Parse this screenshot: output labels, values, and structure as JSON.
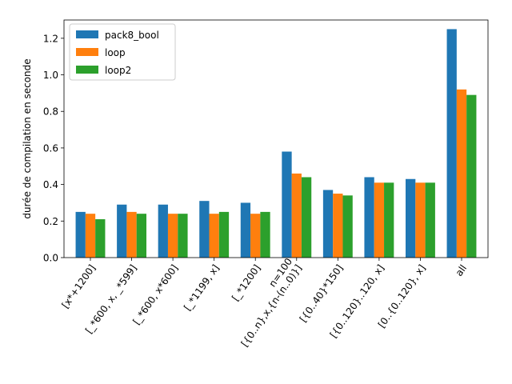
{
  "chart_data": {
    "type": "bar",
    "title": "",
    "xlabel": "",
    "ylabel": "durée de compilation en seconde",
    "ylim": [
      0,
      1.3
    ],
    "yticks": [
      "0.0",
      "0.2",
      "0.4",
      "0.6",
      "0.8",
      "1.0",
      "1.2"
    ],
    "grid": false,
    "legend_position": "top-left",
    "categories": [
      [
        "[x*+1200]"
      ],
      [
        "[_*600, x, _*599]"
      ],
      [
        "[_*600, x*600]"
      ],
      [
        "[_*1199, x]"
      ],
      [
        "[_*1200]"
      ],
      [
        "n=100",
        "[{0..n},x,{n-(n..0)}]"
      ],
      [
        "[{0..40}*150]"
      ],
      [
        "[{0..120}..120, x]"
      ],
      [
        "[0..{0..120}, x]"
      ],
      [
        "all"
      ]
    ],
    "series": [
      {
        "name": "pack8_bool",
        "color": "#1f77b4",
        "values": [
          0.25,
          0.29,
          0.29,
          0.31,
          0.3,
          0.58,
          0.37,
          0.44,
          0.43,
          1.25
        ]
      },
      {
        "name": "loop",
        "color": "#ff7f0e",
        "values": [
          0.24,
          0.25,
          0.24,
          0.24,
          0.24,
          0.46,
          0.35,
          0.41,
          0.41,
          0.92
        ]
      },
      {
        "name": "loop2",
        "color": "#2ca02c",
        "values": [
          0.21,
          0.24,
          0.24,
          0.25,
          0.25,
          0.44,
          0.34,
          0.41,
          0.41,
          0.89
        ]
      }
    ]
  }
}
